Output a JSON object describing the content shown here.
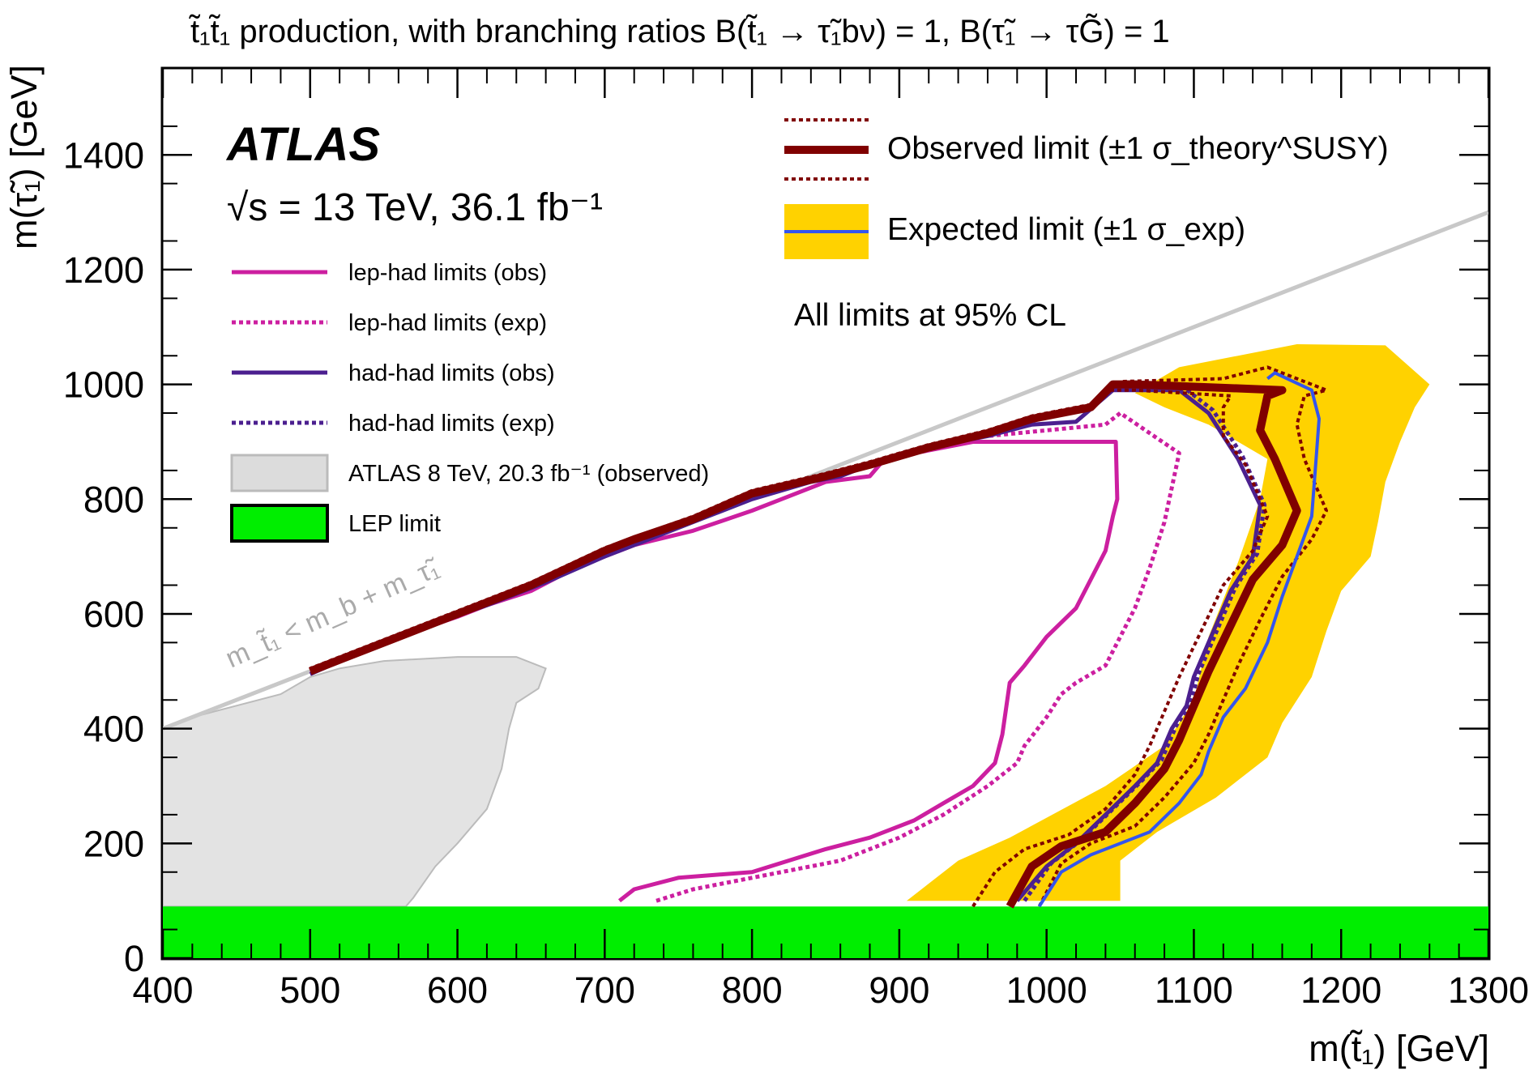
{
  "chart_data": {
    "type": "line",
    "title": "t̃₁t̃₁ production, with branching ratios B(t̃₁ → τ̃₁bν) = 1, B(τ̃₁ → τG̃) = 1",
    "xlabel": "m(t̃₁) [GeV]",
    "ylabel": "m(τ̃₁) [GeV]",
    "xlim": [
      400,
      1300
    ],
    "ylim": [
      0,
      1550
    ],
    "x_ticks": [
      "400",
      "500",
      "600",
      "700",
      "800",
      "900",
      "1000",
      "1100",
      "1200",
      "1300"
    ],
    "y_ticks": [
      "0",
      "200",
      "400",
      "600",
      "800",
      "1000",
      "1200",
      "1400"
    ],
    "experiment": "ATLAS",
    "energy_label": "√s = 13 TeV, 36.1 fb⁻¹",
    "cl_note": "All limits at 95% CL",
    "kinematic_label": "m_t̃₁ < m_b + m_τ̃₁",
    "grid": false,
    "legend_top": [
      {
        "name": "Observed limit (±1 σ_theory^SUSY)",
        "color": "#800000"
      },
      {
        "name": "Expected limit (±1 σ_exp)",
        "color": "#3355ee",
        "band": "#ffd200"
      }
    ],
    "legend_left": [
      {
        "name": "lep-had limits (obs)",
        "color": "#cc1fa0",
        "style": "solid"
      },
      {
        "name": "lep-had limits (exp)",
        "color": "#cc1fa0",
        "style": "dotted"
      },
      {
        "name": "had-had limits (obs)",
        "color": "#4b1f8f",
        "style": "solid"
      },
      {
        "name": "had-had limits (exp)",
        "color": "#4b1f8f",
        "style": "dotted"
      },
      {
        "name": "ATLAS  8 TeV, 20.3 fb⁻¹ (observed)",
        "color": "#dcdcdc",
        "style": "fill"
      },
      {
        "name": "LEP limit",
        "color": "#00ee00",
        "style": "fill"
      }
    ],
    "lep_limit": [
      0,
      90
    ],
    "kinematic_line": [
      [
        400,
        400
      ],
      [
        1300,
        1300
      ]
    ],
    "series": [
      {
        "key": "atlas8",
        "name": "ATLAS  8 TeV, 20.3 fb⁻¹ (observed)",
        "style": "fill",
        "color": "#e3e3e3",
        "stroke": "#bbbbbb",
        "points": [
          [
            400,
            400
          ],
          [
            420,
            420
          ],
          [
            450,
            440
          ],
          [
            480,
            460
          ],
          [
            500,
            490
          ],
          [
            520,
            505
          ],
          [
            550,
            518
          ],
          [
            600,
            525
          ],
          [
            640,
            525
          ],
          [
            660,
            505
          ],
          [
            655,
            470
          ],
          [
            640,
            445
          ],
          [
            635,
            400
          ],
          [
            630,
            330
          ],
          [
            620,
            260
          ],
          [
            600,
            200
          ],
          [
            585,
            160
          ],
          [
            570,
            105
          ],
          [
            565,
            90
          ],
          [
            400,
            90
          ]
        ]
      },
      {
        "key": "exp_band",
        "name": "Expected limit band",
        "style": "fill",
        "color": "#ffd200",
        "points": [
          [
            905,
            100
          ],
          [
            940,
            170
          ],
          [
            975,
            210
          ],
          [
            1040,
            300
          ],
          [
            1080,
            370
          ],
          [
            1100,
            450
          ],
          [
            1110,
            560
          ],
          [
            1130,
            690
          ],
          [
            1145,
            800
          ],
          [
            1150,
            870
          ],
          [
            1110,
            930
          ],
          [
            1080,
            960
          ],
          [
            1060,
            985
          ],
          [
            1090,
            1030
          ],
          [
            1130,
            1050
          ],
          [
            1170,
            1070
          ],
          [
            1230,
            1068
          ],
          [
            1260,
            1000
          ],
          [
            1250,
            960
          ],
          [
            1240,
            900
          ],
          [
            1230,
            830
          ],
          [
            1225,
            760
          ],
          [
            1220,
            700
          ],
          [
            1200,
            640
          ],
          [
            1190,
            570
          ],
          [
            1180,
            490
          ],
          [
            1160,
            410
          ],
          [
            1150,
            350
          ],
          [
            1115,
            280
          ],
          [
            1075,
            220
          ],
          [
            1050,
            170
          ],
          [
            1050,
            100
          ]
        ]
      },
      {
        "key": "lephad_obs",
        "name": "lep-had limits (obs)",
        "style": "solid",
        "color": "#cc1fa0",
        "width": 5,
        "points": [
          [
            710,
            100
          ],
          [
            720,
            120
          ],
          [
            750,
            140
          ],
          [
            800,
            150
          ],
          [
            850,
            190
          ],
          [
            880,
            210
          ],
          [
            910,
            240
          ],
          [
            930,
            270
          ],
          [
            950,
            300
          ],
          [
            965,
            340
          ],
          [
            970,
            390
          ],
          [
            975,
            480
          ],
          [
            985,
            510
          ],
          [
            1000,
            560
          ],
          [
            1020,
            610
          ],
          [
            1030,
            660
          ],
          [
            1040,
            710
          ],
          [
            1045,
            770
          ],
          [
            1048,
            800
          ],
          [
            1047,
            900
          ],
          [
            1000,
            900
          ],
          [
            960,
            900
          ],
          [
            950,
            900
          ],
          [
            890,
            870
          ],
          [
            880,
            840
          ],
          [
            850,
            830
          ],
          [
            820,
            800
          ],
          [
            800,
            780
          ],
          [
            760,
            745
          ],
          [
            720,
            720
          ],
          [
            700,
            700
          ],
          [
            680,
            680
          ],
          [
            650,
            640
          ],
          [
            620,
            615
          ],
          [
            600,
            595
          ],
          [
            560,
            560
          ],
          [
            520,
            520
          ],
          [
            500,
            495
          ]
        ]
      },
      {
        "key": "lephad_exp",
        "name": "lep-had limits (exp)",
        "style": "dotted",
        "color": "#cc1fa0",
        "width": 5,
        "points": [
          [
            735,
            100
          ],
          [
            760,
            120
          ],
          [
            800,
            140
          ],
          [
            860,
            170
          ],
          [
            900,
            210
          ],
          [
            930,
            250
          ],
          [
            960,
            300
          ],
          [
            980,
            340
          ],
          [
            985,
            370
          ],
          [
            1000,
            420
          ],
          [
            1010,
            460
          ],
          [
            1020,
            480
          ],
          [
            1040,
            510
          ],
          [
            1050,
            560
          ],
          [
            1060,
            610
          ],
          [
            1070,
            680
          ],
          [
            1075,
            720
          ],
          [
            1080,
            760
          ],
          [
            1085,
            820
          ],
          [
            1090,
            880
          ],
          [
            1050,
            950
          ],
          [
            1040,
            930
          ],
          [
            1000,
            920
          ],
          [
            960,
            910
          ]
        ]
      },
      {
        "key": "hadhad_obs",
        "name": "had-had limits (obs)",
        "style": "solid",
        "color": "#4b1f8f",
        "width": 5,
        "points": [
          [
            980,
            100
          ],
          [
            1000,
            160
          ],
          [
            1020,
            200
          ],
          [
            1040,
            250
          ],
          [
            1060,
            300
          ],
          [
            1075,
            340
          ],
          [
            1085,
            400
          ],
          [
            1095,
            440
          ],
          [
            1100,
            490
          ],
          [
            1110,
            550
          ],
          [
            1125,
            640
          ],
          [
            1140,
            700
          ],
          [
            1145,
            790
          ],
          [
            1130,
            870
          ],
          [
            1110,
            950
          ],
          [
            1090,
            990
          ],
          [
            1080,
            990
          ],
          [
            1060,
            990
          ],
          [
            1045,
            990
          ],
          [
            1020,
            935
          ],
          [
            990,
            930
          ],
          [
            960,
            910
          ],
          [
            920,
            890
          ],
          [
            890,
            870
          ],
          [
            860,
            840
          ],
          [
            840,
            830
          ],
          [
            800,
            800
          ],
          [
            760,
            760
          ],
          [
            730,
            730
          ],
          [
            700,
            700
          ],
          [
            660,
            655
          ],
          [
            620,
            615
          ],
          [
            580,
            580
          ],
          [
            540,
            540
          ],
          [
            500,
            495
          ]
        ]
      },
      {
        "key": "hadhad_exp",
        "name": "had-had limits (exp)",
        "style": "dotted",
        "color": "#4b1f8f",
        "width": 5,
        "points": [
          [
            985,
            100
          ],
          [
            1003,
            165
          ],
          [
            1023,
            205
          ],
          [
            1043,
            255
          ],
          [
            1063,
            305
          ],
          [
            1078,
            345
          ],
          [
            1088,
            405
          ],
          [
            1098,
            445
          ],
          [
            1103,
            495
          ],
          [
            1113,
            555
          ],
          [
            1128,
            645
          ],
          [
            1143,
            705
          ],
          [
            1148,
            790
          ],
          [
            1133,
            875
          ],
          [
            1113,
            955
          ],
          [
            1093,
            995
          ]
        ]
      },
      {
        "key": "obs",
        "name": "Observed limit",
        "style": "solid",
        "color": "#800000",
        "width": 10,
        "points": [
          [
            975,
            90
          ],
          [
            990,
            160
          ],
          [
            1010,
            195
          ],
          [
            1040,
            220
          ],
          [
            1060,
            270
          ],
          [
            1080,
            330
          ],
          [
            1090,
            380
          ],
          [
            1100,
            440
          ],
          [
            1110,
            500
          ],
          [
            1125,
            580
          ],
          [
            1140,
            660
          ],
          [
            1160,
            720
          ],
          [
            1170,
            780
          ],
          [
            1155,
            870
          ],
          [
            1145,
            920
          ],
          [
            1150,
            980
          ],
          [
            1160,
            990
          ],
          [
            1060,
            1000
          ],
          [
            1045,
            1000
          ],
          [
            1030,
            960
          ],
          [
            990,
            940
          ],
          [
            960,
            915
          ],
          [
            920,
            890
          ],
          [
            880,
            860
          ],
          [
            850,
            840
          ],
          [
            800,
            810
          ],
          [
            760,
            765
          ],
          [
            720,
            730
          ],
          [
            700,
            710
          ],
          [
            650,
            650
          ],
          [
            600,
            600
          ],
          [
            560,
            560
          ],
          [
            520,
            520
          ],
          [
            500,
            500
          ]
        ]
      },
      {
        "key": "obs_up",
        "name": "Observed limit +1σ",
        "style": "dotted",
        "color": "#800000",
        "width": 4,
        "points": [
          [
            995,
            90
          ],
          [
            1010,
            165
          ],
          [
            1030,
            200
          ],
          [
            1060,
            230
          ],
          [
            1080,
            280
          ],
          [
            1100,
            340
          ],
          [
            1110,
            390
          ],
          [
            1120,
            450
          ],
          [
            1130,
            510
          ],
          [
            1145,
            590
          ],
          [
            1160,
            665
          ],
          [
            1180,
            730
          ],
          [
            1190,
            780
          ],
          [
            1175,
            870
          ],
          [
            1170,
            930
          ],
          [
            1175,
            980
          ],
          [
            1190,
            990
          ],
          [
            1150,
            1030
          ],
          [
            1120,
            1010
          ],
          [
            1050,
            1005
          ],
          [
            1030,
            965
          ],
          [
            990,
            945
          ],
          [
            960,
            920
          ],
          [
            920,
            895
          ],
          [
            880,
            865
          ],
          [
            850,
            845
          ],
          [
            800,
            815
          ],
          [
            760,
            770
          ],
          [
            700,
            715
          ],
          [
            650,
            655
          ],
          [
            600,
            605
          ],
          [
            520,
            525
          ],
          [
            500,
            505
          ]
        ]
      },
      {
        "key": "obs_down",
        "name": "Observed limit −1σ",
        "style": "dotted",
        "color": "#800000",
        "width": 4,
        "points": [
          [
            950,
            90
          ],
          [
            965,
            150
          ],
          [
            985,
            190
          ],
          [
            1015,
            215
          ],
          [
            1040,
            260
          ],
          [
            1060,
            320
          ],
          [
            1070,
            370
          ],
          [
            1080,
            430
          ],
          [
            1090,
            490
          ],
          [
            1105,
            570
          ],
          [
            1120,
            650
          ],
          [
            1140,
            710
          ],
          [
            1150,
            770
          ],
          [
            1135,
            860
          ],
          [
            1120,
            910
          ],
          [
            1120,
            960
          ],
          [
            1125,
            980
          ],
          [
            1060,
            990
          ],
          [
            1040,
            990
          ]
        ]
      },
      {
        "key": "exp",
        "name": "Expected limit",
        "style": "solid",
        "color": "#3355ee",
        "width": 4,
        "points": [
          [
            995,
            90
          ],
          [
            1010,
            150
          ],
          [
            1030,
            180
          ],
          [
            1070,
            220
          ],
          [
            1090,
            270
          ],
          [
            1105,
            320
          ],
          [
            1110,
            360
          ],
          [
            1120,
            420
          ],
          [
            1135,
            470
          ],
          [
            1150,
            550
          ],
          [
            1160,
            630
          ],
          [
            1170,
            700
          ],
          [
            1180,
            770
          ],
          [
            1183,
            870
          ],
          [
            1185,
            940
          ],
          [
            1180,
            990
          ],
          [
            1155,
            1020
          ],
          [
            1150,
            1010
          ]
        ]
      }
    ]
  }
}
